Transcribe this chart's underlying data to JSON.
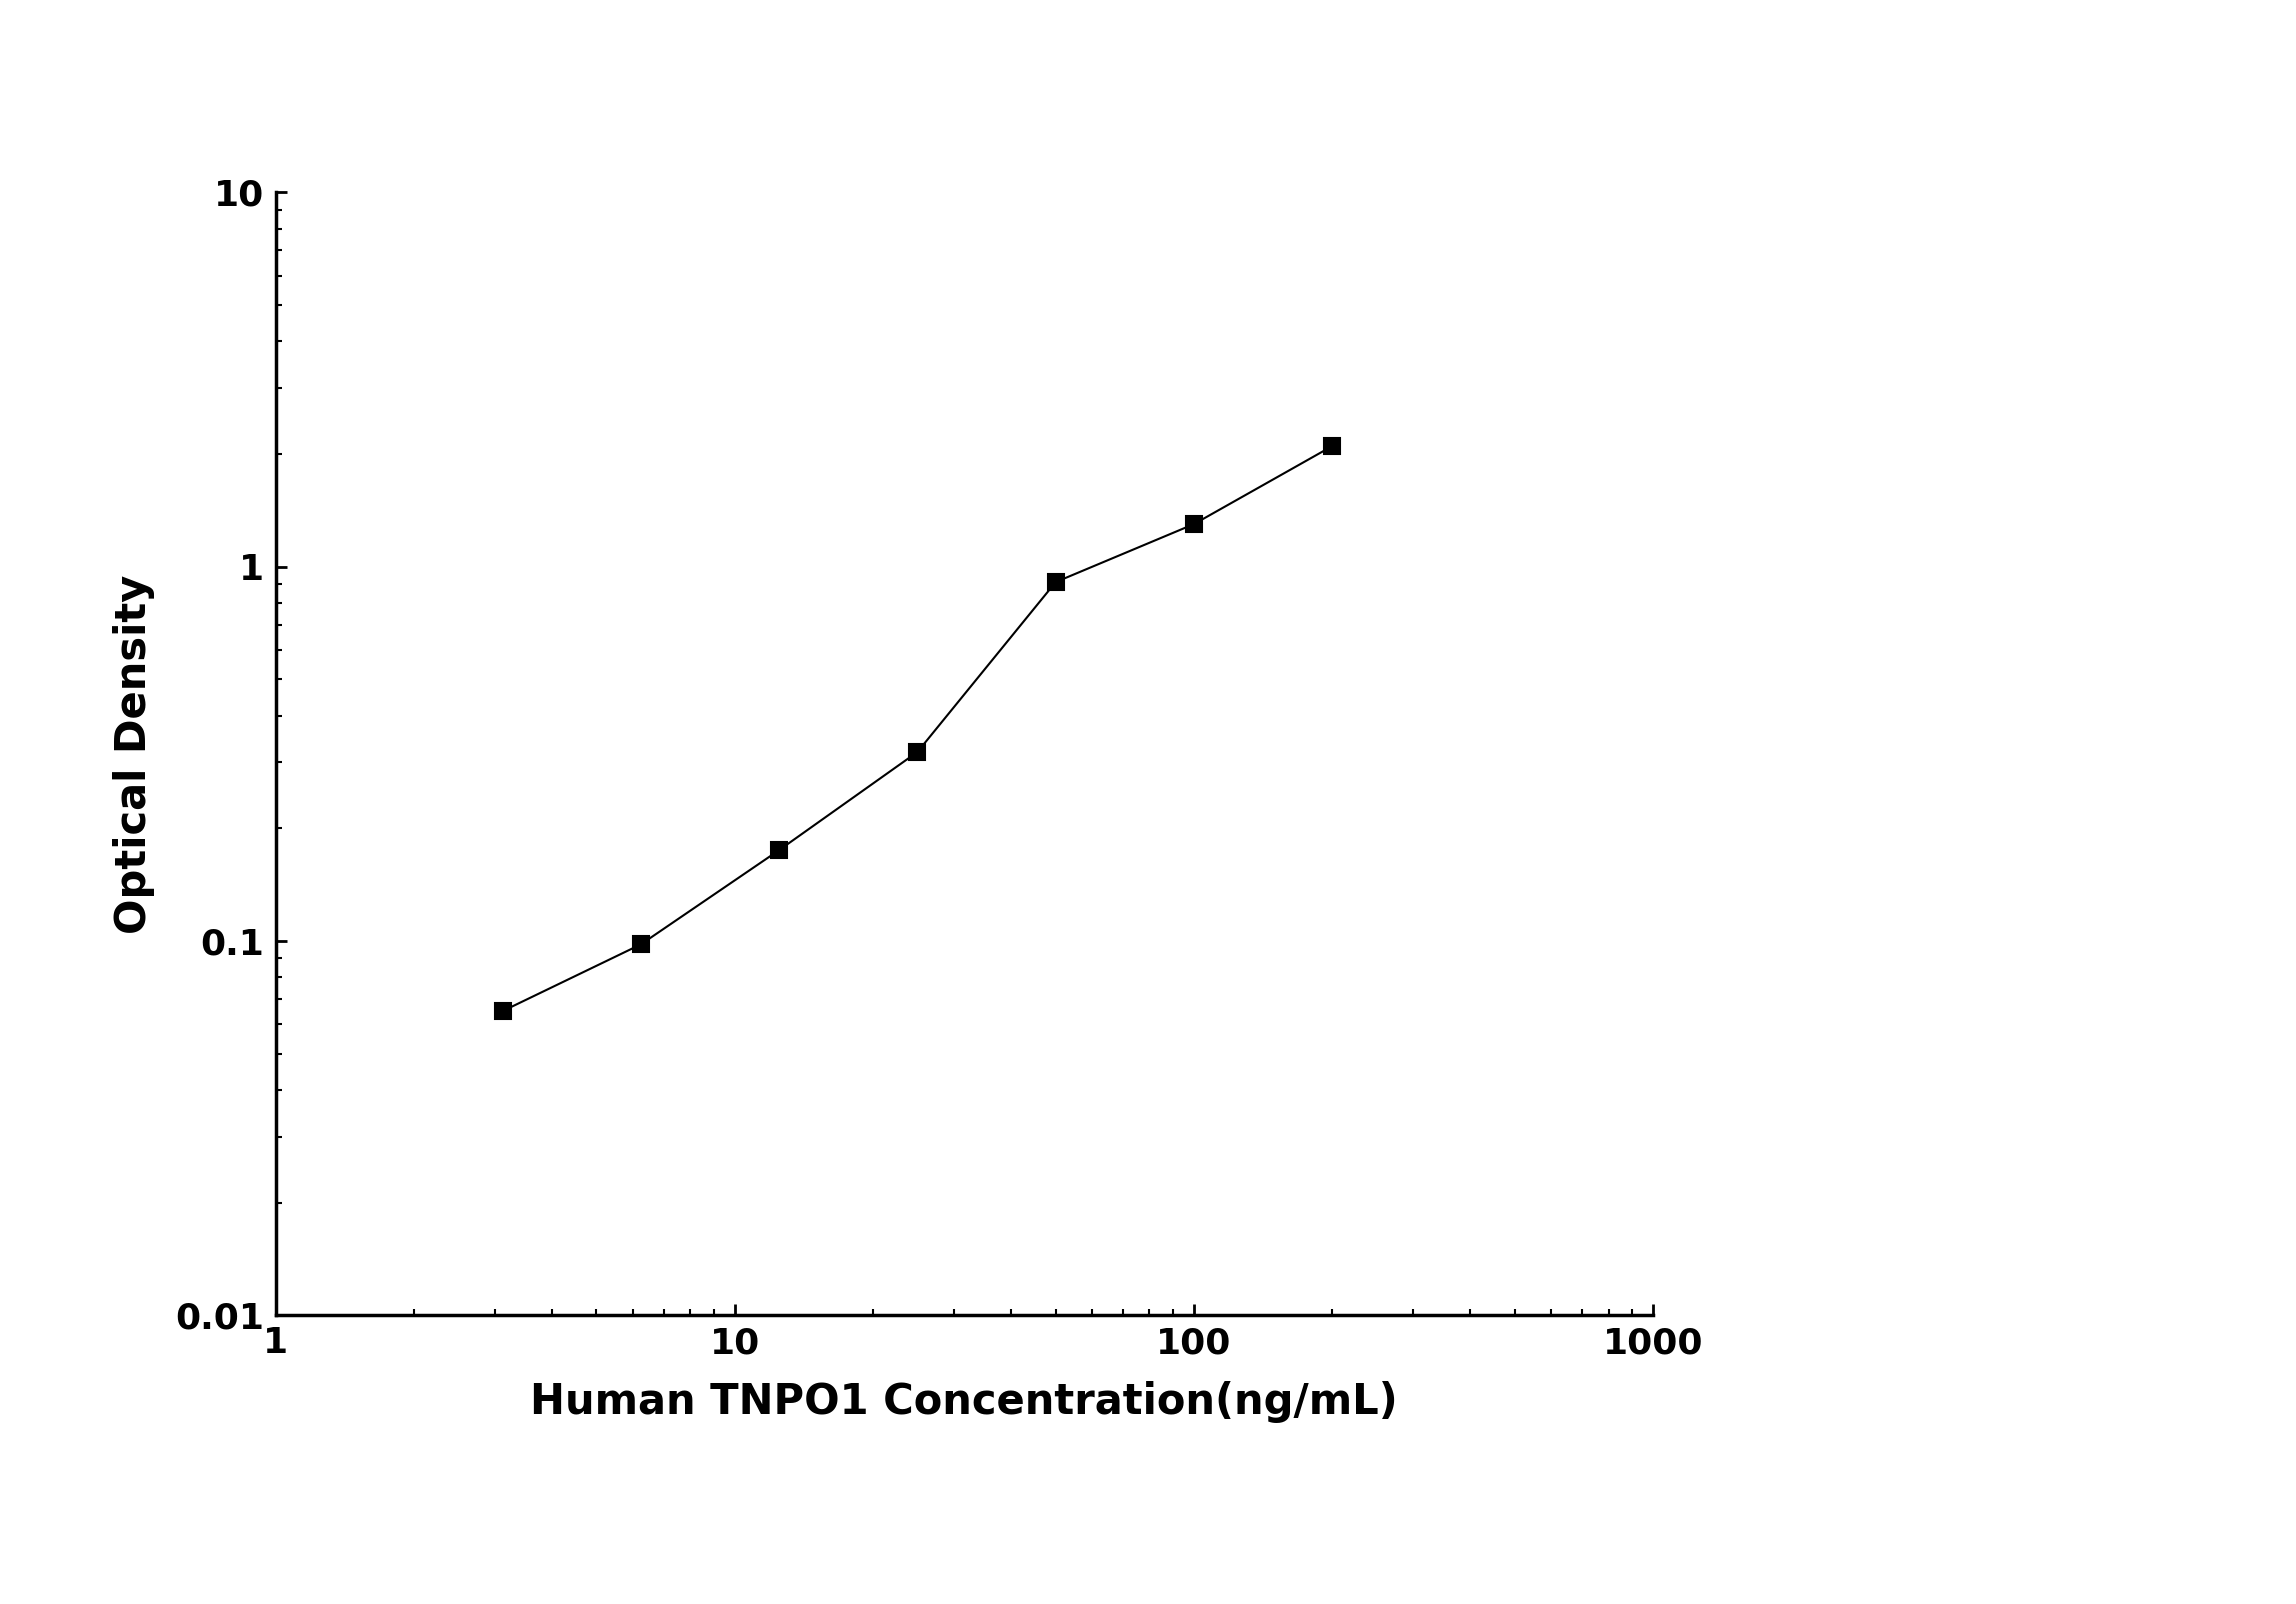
{
  "x_data": [
    3.125,
    6.25,
    12.5,
    25,
    50,
    100,
    200
  ],
  "y_data": [
    0.065,
    0.098,
    0.175,
    0.32,
    0.91,
    1.3,
    2.1
  ],
  "xlabel": "Human TNPO1 Concentration(ng/mL)",
  "ylabel": "Optical Density",
  "xlim": [
    1,
    1000
  ],
  "ylim": [
    0.01,
    10
  ],
  "line_color": "#000000",
  "marker": "s",
  "marker_color": "#000000",
  "marker_size": 11,
  "line_width": 1.5,
  "background_color": "#ffffff",
  "xlabel_fontsize": 30,
  "ylabel_fontsize": 30,
  "tick_fontsize": 26,
  "spine_linewidth": 2.5,
  "ytick_labels": [
    "0.01",
    "0.1",
    "1",
    "10"
  ],
  "ytick_values": [
    0.01,
    0.1,
    1,
    10
  ],
  "xtick_labels": [
    "1",
    "10",
    "100",
    "1000"
  ],
  "xtick_values": [
    1,
    10,
    100,
    1000
  ]
}
